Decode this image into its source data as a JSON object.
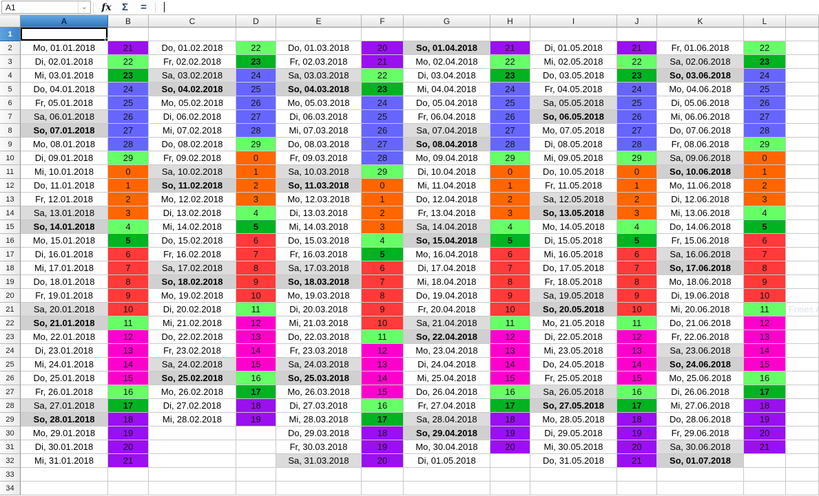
{
  "toolbar": {
    "name_box_value": "A1",
    "function_wizard_label": "fx",
    "sum_label": "Σ",
    "formula_label": "=",
    "formula_input_value": ""
  },
  "grid": {
    "column_headers": [
      "A",
      "B",
      "C",
      "D",
      "E",
      "F",
      "G",
      "H",
      "I",
      "J",
      "K",
      "L"
    ],
    "row_numbers_from": 1,
    "row_numbers_to": 34,
    "selected_cell": "A1",
    "stray_text": "Freies A",
    "stray_text_row": 21
  },
  "colors": {
    "purple": "#9a10f0",
    "light_green": "#66ff66",
    "dark_green": "#00b321",
    "blue": "#6666ff",
    "orange": "#ff6600",
    "red": "#ff3a3a",
    "magenta": "#ff00cc",
    "saturday_bg": "#dcdcdc",
    "sunday_bg": "#d0d0d0"
  },
  "value_style": {
    "bold_values": [
      5,
      17,
      23
    ],
    "color_by_value": {
      "0": "orange",
      "1": "orange",
      "2": "orange",
      "3": "orange",
      "4": "light_green",
      "5": "dark_green",
      "6": "red",
      "7": "red",
      "8": "red",
      "9": "red",
      "10": "red",
      "11": "light_green",
      "12": "magenta",
      "13": "magenta",
      "14": "magenta",
      "15": "magenta",
      "16": "light_green",
      "17": "dark_green",
      "18": "purple",
      "19": "purple",
      "20": "purple",
      "21": "purple",
      "22": "light_green",
      "23": "dark_green",
      "24": "blue",
      "25": "blue",
      "26": "blue",
      "27": "blue",
      "28": "blue",
      "29": "light_green"
    }
  },
  "months": [
    {
      "date_column": "A",
      "value_column": "B",
      "days": [
        [
          "Mo, 01.01.2018",
          21
        ],
        [
          "Di, 02.01.2018",
          22
        ],
        [
          "Mi, 03.01.2018",
          23
        ],
        [
          "Do, 04.01.2018",
          24
        ],
        [
          "Fr, 05.01.2018",
          25
        ],
        [
          "Sa, 06.01.2018",
          26
        ],
        [
          "So, 07.01.2018",
          27
        ],
        [
          "Mo, 08.01.2018",
          28
        ],
        [
          "Di, 09.01.2018",
          29
        ],
        [
          "Mi, 10.01.2018",
          0
        ],
        [
          "Do, 11.01.2018",
          1
        ],
        [
          "Fr, 12.01.2018",
          2
        ],
        [
          "Sa, 13.01.2018",
          3
        ],
        [
          "So, 14.01.2018",
          4
        ],
        [
          "Mo, 15.01.2018",
          5
        ],
        [
          "Di, 16.01.2018",
          6
        ],
        [
          "Mi, 17.01.2018",
          7
        ],
        [
          "Do, 18.01.2018",
          8
        ],
        [
          "Fr, 19.01.2018",
          9
        ],
        [
          "Sa, 20.01.2018",
          10
        ],
        [
          "So, 21.01.2018",
          11
        ],
        [
          "Mo, 22.01.2018",
          12
        ],
        [
          "Di, 23.01.2018",
          13
        ],
        [
          "Mi, 24.01.2018",
          14
        ],
        [
          "Do, 25.01.2018",
          15
        ],
        [
          "Fr, 26.01.2018",
          16
        ],
        [
          "Sa, 27.01.2018",
          17
        ],
        [
          "So, 28.01.2018",
          18
        ],
        [
          "Mo, 29.01.2018",
          19
        ],
        [
          "Di, 30.01.2018",
          20
        ],
        [
          "Mi, 31.01.2018",
          21
        ]
      ]
    },
    {
      "date_column": "C",
      "value_column": "D",
      "days": [
        [
          "Do, 01.02.2018",
          22
        ],
        [
          "Fr, 02.02.2018",
          23
        ],
        [
          "Sa, 03.02.2018",
          24
        ],
        [
          "So, 04.02.2018",
          25
        ],
        [
          "Mo, 05.02.2018",
          26
        ],
        [
          "Di, 06.02.2018",
          27
        ],
        [
          "Mi, 07.02.2018",
          28
        ],
        [
          "Do, 08.02.2018",
          29
        ],
        [
          "Fr, 09.02.2018",
          0
        ],
        [
          "Sa, 10.02.2018",
          1
        ],
        [
          "So, 11.02.2018",
          2
        ],
        [
          "Mo, 12.02.2018",
          3
        ],
        [
          "Di, 13.02.2018",
          4
        ],
        [
          "Mi, 14.02.2018",
          5
        ],
        [
          "Do, 15.02.2018",
          6
        ],
        [
          "Fr, 16.02.2018",
          7
        ],
        [
          "Sa, 17.02.2018",
          8
        ],
        [
          "So, 18.02.2018",
          9
        ],
        [
          "Mo, 19.02.2018",
          10
        ],
        [
          "Di, 20.02.2018",
          11
        ],
        [
          "Mi, 21.02.2018",
          12
        ],
        [
          "Do, 22.02.2018",
          13
        ],
        [
          "Fr, 23.02.2018",
          14
        ],
        [
          "Sa, 24.02.2018",
          15
        ],
        [
          "So, 25.02.2018",
          16
        ],
        [
          "Mo, 26.02.2018",
          17
        ],
        [
          "Di, 27.02.2018",
          18
        ],
        [
          "Mi, 28.02.2018",
          19
        ],
        null,
        null,
        null
      ]
    },
    {
      "date_column": "E",
      "value_column": "F",
      "days": [
        [
          "Do, 01.03.2018",
          20
        ],
        [
          "Fr, 02.03.2018",
          21
        ],
        [
          "Sa, 03.03.2018",
          22
        ],
        [
          "So, 04.03.2018",
          23
        ],
        [
          "Mo, 05.03.2018",
          24
        ],
        [
          "Di, 06.03.2018",
          25
        ],
        [
          "Mi, 07.03.2018",
          26
        ],
        [
          "Do, 08.03.2018",
          27
        ],
        [
          "Fr, 09.03.2018",
          28
        ],
        [
          "Sa, 10.03.2018",
          29
        ],
        [
          "So, 11.03.2018",
          0
        ],
        [
          "Mo, 12.03.2018",
          1
        ],
        [
          "Di, 13.03.2018",
          2
        ],
        [
          "Mi, 14.03.2018",
          3
        ],
        [
          "Do, 15.03.2018",
          4
        ],
        [
          "Fr, 16.03.2018",
          5
        ],
        [
          "Sa, 17.03.2018",
          6
        ],
        [
          "So, 18.03.2018",
          7
        ],
        [
          "Mo, 19.03.2018",
          8
        ],
        [
          "Di, 20.03.2018",
          9
        ],
        [
          "Mi, 21.03.2018",
          10
        ],
        [
          "Do, 22.03.2018",
          11
        ],
        [
          "Fr, 23.03.2018",
          12
        ],
        [
          "Sa, 24.03.2018",
          13
        ],
        [
          "So, 25.03.2018",
          14
        ],
        [
          "Mo, 26.03.2018",
          15
        ],
        [
          "Di, 27.03.2018",
          16
        ],
        [
          "Mi, 28.03.2018",
          17
        ],
        [
          "Do, 29.03.2018",
          18
        ],
        [
          "Fr, 30.03.2018",
          19
        ],
        [
          "Sa, 31.03.2018",
          20
        ]
      ]
    },
    {
      "date_column": "G",
      "value_column": "H",
      "days": [
        [
          "So, 01.04.2018",
          21
        ],
        [
          "Mo, 02.04.2018",
          22
        ],
        [
          "Di, 03.04.2018",
          23
        ],
        [
          "Mi, 04.04.2018",
          24
        ],
        [
          "Do, 05.04.2018",
          25
        ],
        [
          "Fr, 06.04.2018",
          26
        ],
        [
          "Sa, 07.04.2018",
          27
        ],
        [
          "So, 08.04.2018",
          28
        ],
        [
          "Mo, 09.04.2018",
          29
        ],
        [
          "Di, 10.04.2018",
          0
        ],
        [
          "Mi, 11.04.2018",
          1
        ],
        [
          "Do, 12.04.2018",
          2
        ],
        [
          "Fr, 13.04.2018",
          3
        ],
        [
          "Sa, 14.04.2018",
          4
        ],
        [
          "So, 15.04.2018",
          5
        ],
        [
          "Mo, 16.04.2018",
          6
        ],
        [
          "Di, 17.04.2018",
          7
        ],
        [
          "Mi, 18.04.2018",
          8
        ],
        [
          "Do, 19.04.2018",
          9
        ],
        [
          "Fr, 20.04.2018",
          10
        ],
        [
          "Sa, 21.04.2018",
          11
        ],
        [
          "So, 22.04.2018",
          12
        ],
        [
          "Mo, 23.04.2018",
          13
        ],
        [
          "Di, 24.04.2018",
          14
        ],
        [
          "Mi, 25.04.2018",
          15
        ],
        [
          "Do, 26.04.2018",
          16
        ],
        [
          "Fr, 27.04.2018",
          17
        ],
        [
          "Sa, 28.04.2018",
          18
        ],
        [
          "So, 29.04.2018",
          19
        ],
        [
          "Mo, 30.04.2018",
          20
        ],
        [
          "Di, 01.05.2018",
          null
        ]
      ]
    },
    {
      "date_column": "I",
      "value_column": "J",
      "days": [
        [
          "Di, 01.05.2018",
          21
        ],
        [
          "Mi, 02.05.2018",
          22
        ],
        [
          "Do, 03.05.2018",
          23
        ],
        [
          "Fr, 04.05.2018",
          24
        ],
        [
          "Sa, 05.05.2018",
          25
        ],
        [
          "So, 06.05.2018",
          26
        ],
        [
          "Mo, 07.05.2018",
          27
        ],
        [
          "Di, 08.05.2018",
          28
        ],
        [
          "Mi, 09.05.2018",
          29
        ],
        [
          "Do, 10.05.2018",
          0
        ],
        [
          "Fr, 11.05.2018",
          1
        ],
        [
          "Sa, 12.05.2018",
          2
        ],
        [
          "So, 13.05.2018",
          3
        ],
        [
          "Mo, 14.05.2018",
          4
        ],
        [
          "Di, 15.05.2018",
          5
        ],
        [
          "Mi, 16.05.2018",
          6
        ],
        [
          "Do, 17.05.2018",
          7
        ],
        [
          "Fr, 18.05.2018",
          8
        ],
        [
          "Sa, 19.05.2018",
          9
        ],
        [
          "So, 20.05.2018",
          10
        ],
        [
          "Mo, 21.05.2018",
          11
        ],
        [
          "Di, 22.05.2018",
          12
        ],
        [
          "Mi, 23.05.2018",
          13
        ],
        [
          "Do, 24.05.2018",
          14
        ],
        [
          "Fr, 25.05.2018",
          15
        ],
        [
          "Sa, 26.05.2018",
          16
        ],
        [
          "So, 27.05.2018",
          17
        ],
        [
          "Mo, 28.05.2018",
          18
        ],
        [
          "Di, 29.05.2018",
          19
        ],
        [
          "Mi, 30.05.2018",
          20
        ],
        [
          "Do, 31.05.2018",
          21
        ]
      ]
    },
    {
      "date_column": "K",
      "value_column": "L",
      "days": [
        [
          "Fr, 01.06.2018",
          22
        ],
        [
          "Sa, 02.06.2018",
          23
        ],
        [
          "So, 03.06.2018",
          24
        ],
        [
          "Mo, 04.06.2018",
          25
        ],
        [
          "Di, 05.06.2018",
          26
        ],
        [
          "Mi, 06.06.2018",
          27
        ],
        [
          "Do, 07.06.2018",
          28
        ],
        [
          "Fr, 08.06.2018",
          29
        ],
        [
          "Sa, 09.06.2018",
          0
        ],
        [
          "So, 10.06.2018",
          1
        ],
        [
          "Mo, 11.06.2018",
          2
        ],
        [
          "Di, 12.06.2018",
          3
        ],
        [
          "Mi, 13.06.2018",
          4
        ],
        [
          "Do, 14.06.2018",
          5
        ],
        [
          "Fr, 15.06.2018",
          6
        ],
        [
          "Sa, 16.06.2018",
          7
        ],
        [
          "So, 17.06.2018",
          8
        ],
        [
          "Mo, 18.06.2018",
          9
        ],
        [
          "Di, 19.06.2018",
          10
        ],
        [
          "Mi, 20.06.2018",
          11
        ],
        [
          "Do, 21.06.2018",
          12
        ],
        [
          "Fr, 22.06.2018",
          13
        ],
        [
          "Sa, 23.06.2018",
          14
        ],
        [
          "So, 24.06.2018",
          15
        ],
        [
          "Mo, 25.06.2018",
          16
        ],
        [
          "Di, 26.06.2018",
          17
        ],
        [
          "Mi, 27.06.2018",
          18
        ],
        [
          "Do, 28.06.2018",
          19
        ],
        [
          "Fr, 29.06.2018",
          20
        ],
        [
          "Sa, 30.06.2018",
          21
        ],
        [
          "So, 01.07.2018",
          null
        ]
      ]
    }
  ]
}
